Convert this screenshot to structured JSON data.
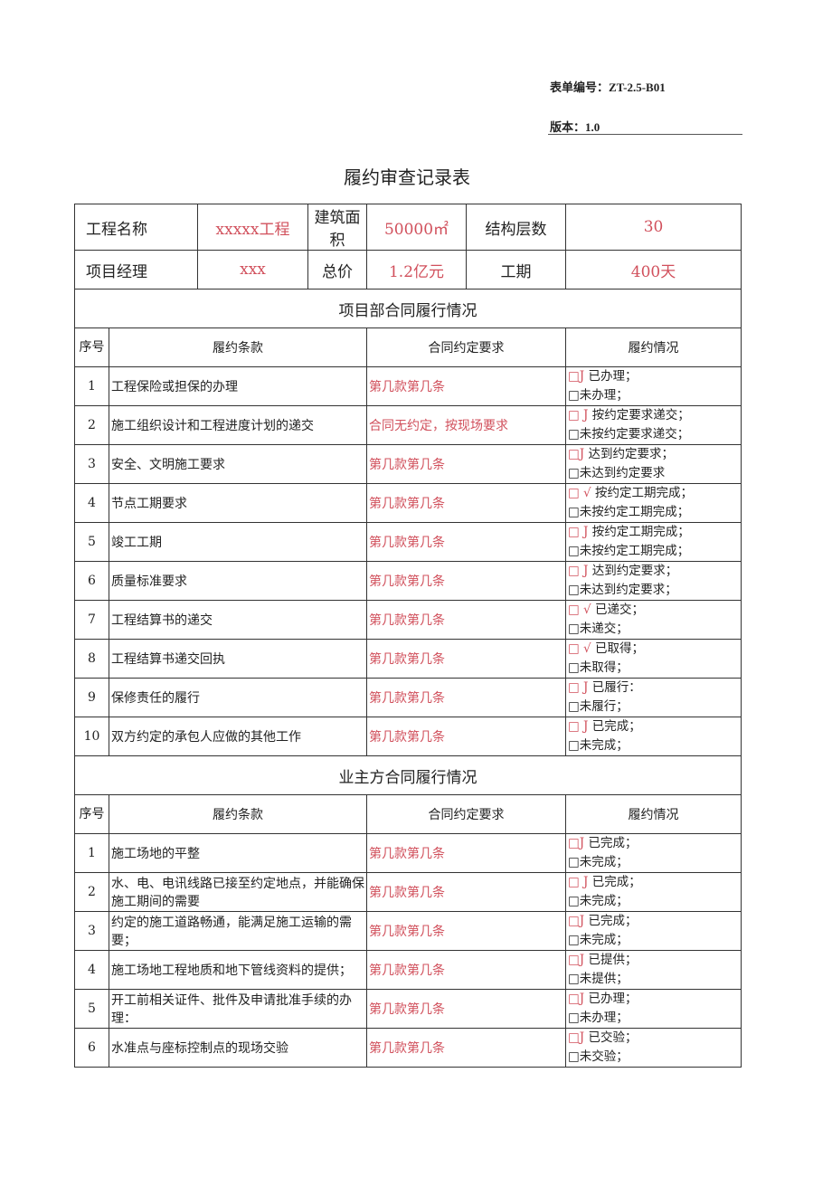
{
  "header": {
    "form_no": "表单编号：ZT-2.5-B01",
    "version": "版本：1.0",
    "title": "履约审查记录表"
  },
  "info": {
    "row1": [
      {
        "label": "工程名称",
        "value": "xxxxx工程"
      },
      {
        "label": "建筑面积",
        "value": "50000㎡"
      },
      {
        "label": "结构层数",
        "value": "30"
      }
    ],
    "row2": [
      {
        "label": "项目经理",
        "value": "xxx"
      },
      {
        "label": "总价",
        "value": "1.2亿元"
      },
      {
        "label": "工期",
        "value": "400天"
      }
    ]
  },
  "columns": {
    "seq": "序号",
    "clause": "履约条款",
    "requirement": "合同约定要求",
    "status": "履约情况"
  },
  "colors": {
    "red": "#d1505c"
  },
  "sections": [
    {
      "title": "项目部合同履行情况",
      "rows": [
        {
          "seq": "1",
          "clause": "工程保险或担保的办理",
          "req": "第几款第几条",
          "mark": "□J",
          "yes": "已办理；",
          "no": "□未办理；"
        },
        {
          "seq": "2",
          "clause": "施工组织设计和工程进度计划的递交",
          "req": "合同无约定，按现场要求",
          "mark": "□ J",
          "yes": "按约定要求递交；",
          "no": "□未按约定要求递交；"
        },
        {
          "seq": "3",
          "clause": "安全、文明施工要求",
          "req": "第几款第几条",
          "mark": "□J",
          "yes": "达到约定要求；",
          "no": "□未达到约定要求"
        },
        {
          "seq": "4",
          "clause": "节点工期要求",
          "req": "第几款第几条",
          "mark": "□ √",
          "yes": "按约定工期完成；",
          "no": "□未按约定工期完成；"
        },
        {
          "seq": "5",
          "clause": "竣工工期",
          "req": "第几款第几条",
          "mark": "□ J",
          "yes": "按约定工期完成；",
          "no": "□未按约定工期完成；"
        },
        {
          "seq": "6",
          "clause": "质量标准要求",
          "req": "第几款第几条",
          "mark": "□ J",
          "yes": "达到约定要求；",
          "no": "□未达到约定要求；"
        },
        {
          "seq": "7",
          "clause": "工程结算书的递交",
          "req": "第几款第几条",
          "mark": "□ √",
          "yes": "已递交；",
          "no": "□未递交；"
        },
        {
          "seq": "8",
          "clause": "工程结算书递交回执",
          "req": "第几款第几条",
          "mark": "□ √",
          "yes": "已取得；",
          "no": "□未取得；"
        },
        {
          "seq": "9",
          "clause": "保修责任的履行",
          "req": "第几款第几条",
          "mark": "□ J",
          "yes": "已履行：",
          "no": "□未履行；"
        },
        {
          "seq": "10",
          "clause": "双方约定的承包人应做的其他工作",
          "req": "第几款第几条",
          "mark": "□ J",
          "yes": "已完成；",
          "no": "□未完成；"
        }
      ]
    },
    {
      "title": "业主方合同履行情况",
      "rows": [
        {
          "seq": "1",
          "clause": "施工场地的平整",
          "req": "第几款第几条",
          "mark": "□J",
          "yes": "已完成；",
          "no": "□未完成；"
        },
        {
          "seq": "2",
          "clause": "水、电、电讯线路已接至约定地点，并能确保施工期间的需要",
          "req": "第几款第几条",
          "mark": "□ J",
          "yes": "已完成；",
          "no": "□未完成；"
        },
        {
          "seq": "3",
          "clause": "约定的施工道路畅通，能满足施工运输的需要；",
          "req": "第几款第几条",
          "mark": "□J",
          "yes": "已完成；",
          "no": "□未完成；"
        },
        {
          "seq": "4",
          "clause": "施工场地工程地质和地下管线资料的提供；",
          "req": "第几款第几条",
          "mark": "□J",
          "yes": "已提供；",
          "no": "□未提供；"
        },
        {
          "seq": "5",
          "clause": "开工前相关证件、批件及申请批准手续的办理：",
          "req": "第几款第几条",
          "mark": "□J",
          "yes": "已办理；",
          "no": "□未办理；"
        },
        {
          "seq": "6",
          "clause": "水准点与座标控制点的现场交验",
          "req": "第几款第几条",
          "mark": "□J",
          "yes": "已交验；",
          "no": "□未交验；"
        }
      ]
    }
  ]
}
